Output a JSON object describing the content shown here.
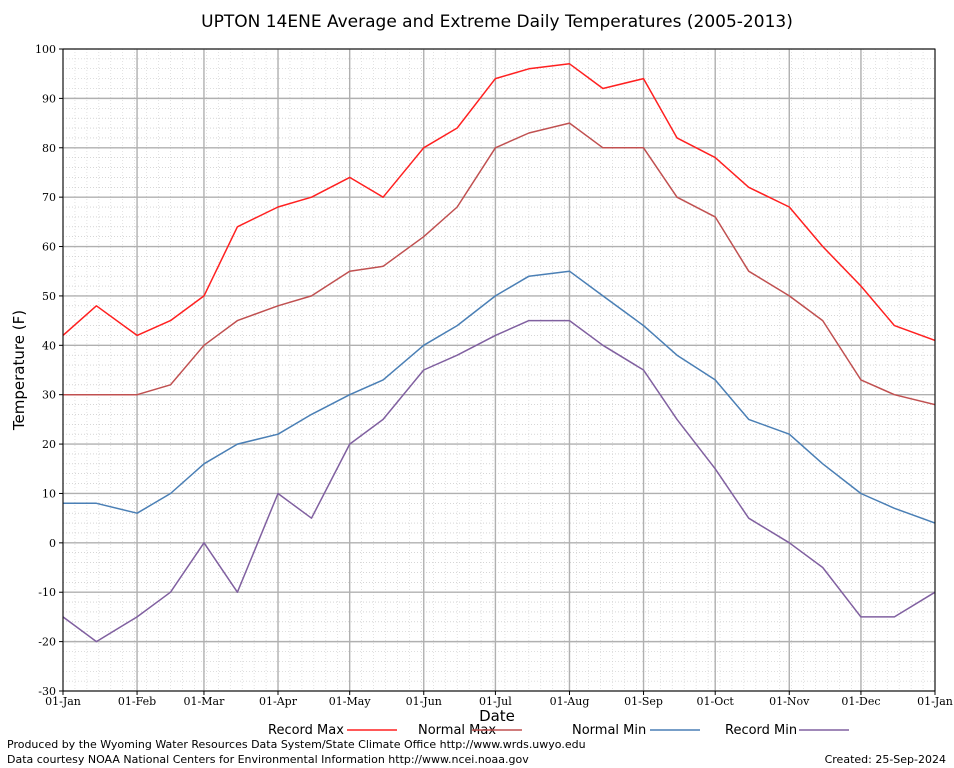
{
  "footer": {
    "credit": "Produced by the Wyoming Water Resources Data System/State Climate Office http://www.wrds.uwyo.edu",
    "source": "Data courtesy NOAA National Centers for Environmental Information http://www.ncei.noaa.gov",
    "created": "Created:  25-Sep-2024"
  },
  "chart_data": {
    "type": "line",
    "title": "UPTON 14ENE Average and Extreme Daily Temperatures (2005-2013)",
    "xlabel": "Date",
    "ylabel": "Temperature (F)",
    "ylim": [
      -30,
      100
    ],
    "yticks": [
      -30,
      -20,
      -10,
      0,
      10,
      20,
      30,
      40,
      50,
      60,
      70,
      80,
      90,
      100
    ],
    "xlim": [
      "01-Jan",
      "01-Jan"
    ],
    "xticks": [
      "01-Jan",
      "01-Feb",
      "01-Mar",
      "01-Apr",
      "01-May",
      "01-Jun",
      "01-Jul",
      "01-Aug",
      "01-Sep",
      "01-Oct",
      "01-Nov",
      "01-Dec",
      "01-Jan"
    ],
    "grid": true,
    "legend_position": "bottom",
    "x": [
      "01-Jan",
      "15-Jan",
      "01-Feb",
      "15-Feb",
      "01-Mar",
      "15-Mar",
      "01-Apr",
      "15-Apr",
      "01-May",
      "15-May",
      "01-Jun",
      "15-Jun",
      "01-Jul",
      "15-Jul",
      "01-Aug",
      "15-Aug",
      "01-Sep",
      "15-Sep",
      "01-Oct",
      "15-Oct",
      "01-Nov",
      "15-Nov",
      "01-Dec",
      "15-Dec",
      "01-Jan"
    ],
    "series": [
      {
        "name": "Record Max",
        "color": "#ff2020",
        "values": [
          42,
          48,
          42,
          45,
          50,
          64,
          68,
          70,
          74,
          70,
          80,
          84,
          94,
          96,
          97,
          92,
          94,
          82,
          78,
          72,
          68,
          60,
          52,
          44,
          41
        ]
      },
      {
        "name": "Normal Max",
        "color": "#c05050",
        "values": [
          30,
          30,
          30,
          32,
          40,
          45,
          48,
          50,
          55,
          56,
          62,
          68,
          80,
          83,
          85,
          80,
          80,
          70,
          66,
          55,
          50,
          45,
          33,
          30,
          28
        ]
      },
      {
        "name": "Normal Min",
        "color": "#4a7fb5",
        "values": [
          8,
          8,
          6,
          10,
          16,
          20,
          22,
          26,
          30,
          33,
          40,
          44,
          50,
          54,
          55,
          50,
          44,
          38,
          33,
          25,
          22,
          16,
          10,
          7,
          4
        ]
      },
      {
        "name": "Record Min",
        "color": "#8060a0",
        "values": [
          -15,
          -20,
          -15,
          -10,
          0,
          -10,
          10,
          5,
          20,
          25,
          35,
          38,
          42,
          45,
          45,
          40,
          35,
          25,
          15,
          5,
          0,
          -5,
          -15,
          -15,
          -10
        ]
      }
    ]
  }
}
